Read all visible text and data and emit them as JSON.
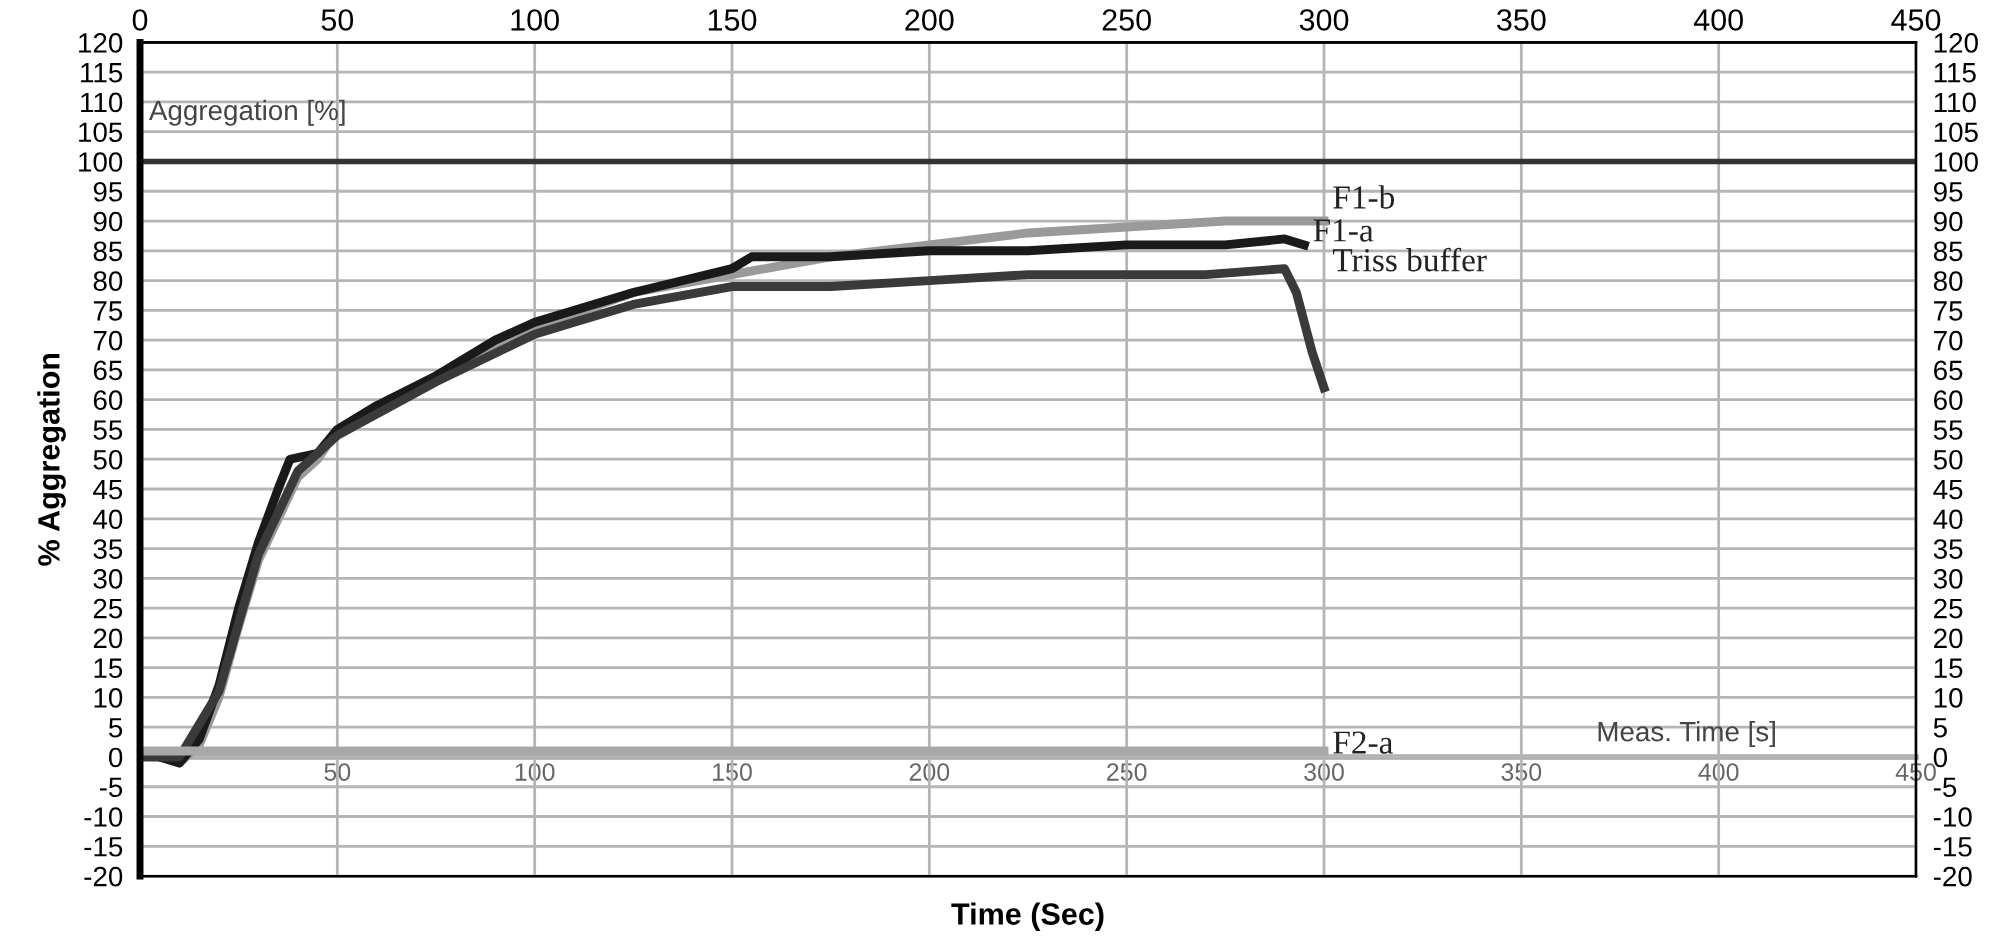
{
  "chart_data": {
    "type": "line",
    "xlabel": "Time (Sec)",
    "ylabel": "% Aggregation",
    "xlim": [
      0,
      450
    ],
    "xticks": [
      {
        "value": 0,
        "label": null
      },
      50,
      100,
      150,
      200,
      250,
      300,
      350,
      400,
      450
    ],
    "x2lim": [
      0,
      450
    ],
    "x2ticks": [
      0,
      50,
      100,
      150,
      200,
      250,
      300,
      350,
      400,
      450
    ],
    "ylim": [
      -20,
      120
    ],
    "yticks": [
      -20,
      -15,
      -10,
      -5,
      0,
      5,
      10,
      15,
      20,
      25,
      30,
      35,
      40,
      45,
      50,
      55,
      60,
      65,
      70,
      75,
      80,
      85,
      90,
      95,
      100,
      105,
      110,
      115,
      120
    ],
    "y2lim": [
      -20,
      120
    ],
    "y2ticks": [
      -20,
      -15,
      -10,
      -5,
      0,
      5,
      10,
      15,
      20,
      25,
      30,
      35,
      40,
      45,
      50,
      55,
      60,
      65,
      70,
      75,
      80,
      85,
      90,
      95,
      100,
      105,
      110,
      115,
      120
    ],
    "grid": true,
    "marker": "none",
    "line_style": "solid",
    "ref_lines": [
      {
        "axis": "y",
        "value": 100,
        "color": "#333333"
      }
    ],
    "annotations": [
      "Aggregation [%]",
      "Meas. Time [s]"
    ],
    "series": [
      {
        "name": "F1-b",
        "color": "#9a9a9a",
        "x": [
          0,
          5,
          10,
          15,
          20,
          25,
          30,
          35,
          40,
          45,
          50,
          60,
          75,
          90,
          100,
          125,
          150,
          175,
          200,
          225,
          250,
          275,
          295,
          300
        ],
        "values": [
          1,
          0,
          -1,
          2,
          10,
          22,
          33,
          40,
          47,
          50,
          55,
          59,
          64,
          69,
          72,
          78,
          81,
          84,
          86,
          88,
          89,
          90,
          90,
          90
        ]
      },
      {
        "name": "F1-a",
        "color": "#1a1a1a",
        "x": [
          0,
          5,
          10,
          15,
          20,
          25,
          30,
          35,
          38,
          45,
          50,
          60,
          75,
          90,
          100,
          125,
          150,
          155,
          175,
          200,
          225,
          250,
          275,
          290,
          295
        ],
        "values": [
          1,
          0,
          -1,
          3,
          12,
          25,
          36,
          45,
          50,
          51,
          55,
          59,
          64,
          70,
          73,
          78,
          82,
          84,
          84,
          85,
          85,
          86,
          86,
          87,
          86
        ]
      },
      {
        "name": "Triss buffer",
        "color": "#3a3a3a",
        "x": [
          0,
          10,
          20,
          30,
          40,
          50,
          75,
          100,
          110,
          125,
          150,
          175,
          200,
          225,
          250,
          270,
          290,
          293,
          297,
          300
        ],
        "values": [
          0,
          0,
          11,
          34,
          48,
          54,
          63,
          71,
          73,
          76,
          79,
          79,
          80,
          81,
          81,
          81,
          82,
          78,
          68,
          62
        ]
      },
      {
        "name": "F2-a",
        "color": "#a8a8a8",
        "x": [
          0,
          50,
          100,
          150,
          200,
          250,
          300
        ],
        "values": [
          1,
          1,
          1,
          1,
          1,
          1,
          1
        ]
      }
    ]
  }
}
